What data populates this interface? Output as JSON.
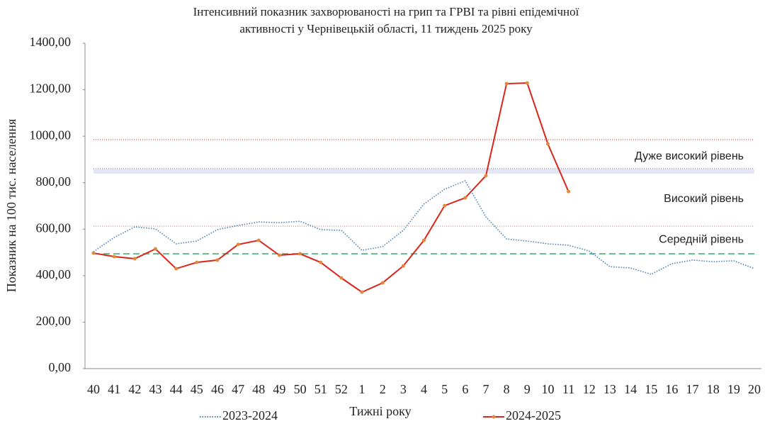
{
  "chart_data": {
    "type": "line",
    "title": "Інтенсивний показник захворюваності на грип та ГРВІ та рівні епідемічної",
    "subtitle": "активності  у Чернівецькій області, 11 тиждень 2025 року",
    "y_label": "Показник на 100 тис. населення",
    "x_label": "Тижні року",
    "categories": [
      "40",
      "41",
      "42",
      "43",
      "44",
      "45",
      "46",
      "47",
      "48",
      "49",
      "50",
      "51",
      "52",
      "1",
      "2",
      "3",
      "4",
      "5",
      "6",
      "7",
      "8",
      "9",
      "10",
      "11",
      "12",
      "13",
      "14",
      "15",
      "16",
      "17",
      "18",
      "19",
      "20"
    ],
    "series": [
      {
        "name": "2023-2024",
        "color": "#4a7fb5",
        "style": "dotted",
        "values": [
          503,
          564,
          610,
          601,
          537,
          549,
          598,
          616,
          631,
          628,
          634,
          598,
          595,
          509,
          525,
          595,
          708,
          772,
          808,
          653,
          558,
          549,
          537,
          531,
          506,
          439,
          433,
          406,
          451,
          467,
          460,
          464,
          430
        ]
      },
      {
        "name": "2024-2025",
        "color": "#d9261c",
        "style": "solid",
        "values": [
          497,
          482,
          473,
          515,
          430,
          457,
          467,
          534,
          552,
          488,
          494,
          457,
          390,
          329,
          369,
          442,
          552,
          701,
          735,
          830,
          1226,
          1229,
          967,
          762,
          null,
          null,
          null,
          null,
          null,
          null,
          null,
          null,
          null
        ]
      }
    ],
    "reference_lines": [
      {
        "value": 494,
        "color": "#3aa86b",
        "style": "dashed"
      },
      {
        "value": 613,
        "color": "#b08070",
        "style": "dotted"
      },
      {
        "value": 848,
        "color": "#d8dcf0",
        "style": "band"
      },
      {
        "value": 860,
        "color": "#5060a0",
        "style": "dotted"
      },
      {
        "value": 985,
        "color": "#d9261c",
        "style": "dotted"
      }
    ],
    "annotations": [
      {
        "text": "Середній рівень",
        "value": 555
      },
      {
        "text": "Високий рівень",
        "value": 730
      },
      {
        "text": "Дуже високий рівень",
        "value": 912
      }
    ],
    "ylim": [
      0,
      1400
    ],
    "yticks": [
      {
        "value": 0,
        "label": "0,00"
      },
      {
        "value": 200,
        "label": "200,00"
      },
      {
        "value": 400,
        "label": "400,00"
      },
      {
        "value": 600,
        "label": "600,00"
      },
      {
        "value": 800,
        "label": "800,00"
      },
      {
        "value": 1000,
        "label": "1000,00"
      },
      {
        "value": 1200,
        "label": "1200,00"
      },
      {
        "value": 1400,
        "label": "1400,00"
      }
    ],
    "legend": "bottom"
  }
}
